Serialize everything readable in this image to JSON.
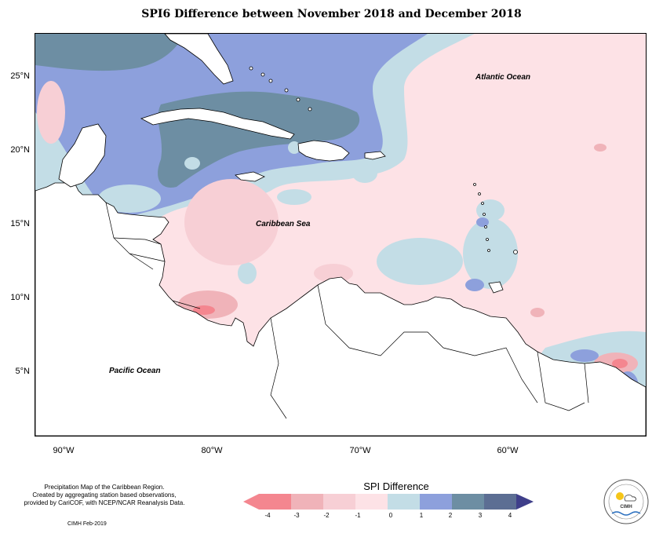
{
  "title": "SPI6 Difference between November 2018 and December 2018",
  "map": {
    "region": "Caribbean",
    "lat_labels": [
      "25°N",
      "20°N",
      "15°N",
      "10°N",
      "5°N"
    ],
    "lon_labels": [
      "90°W",
      "80°W",
      "70°W",
      "60°W"
    ],
    "place_labels": {
      "atlantic": "Atlantic Ocean",
      "caribbean": "Caribbean Sea",
      "pacific": "Pacific Ocean"
    }
  },
  "legend": {
    "title": "SPI Difference",
    "ticks": [
      "-4",
      "-3",
      "-2",
      "-1",
      "0",
      "1",
      "2",
      "3",
      "4"
    ],
    "colors": [
      "#f4868f",
      "#f0b3b9",
      "#f7cfd5",
      "#fde2e6",
      "#c3dde6",
      "#8da0dc",
      "#6d8ea3",
      "#5c6e93",
      "#3f3f8a"
    ]
  },
  "footer": {
    "line1": "Precipitation Map of the Caribbean Region.",
    "line2": "Created by aggregating station based observations,",
    "line3": "provided by CariCOF, with NCEP/NCAR Reanalysis Data.",
    "credit": "CIMH Feb-2019"
  },
  "logo": {
    "text": "CIMH"
  }
}
